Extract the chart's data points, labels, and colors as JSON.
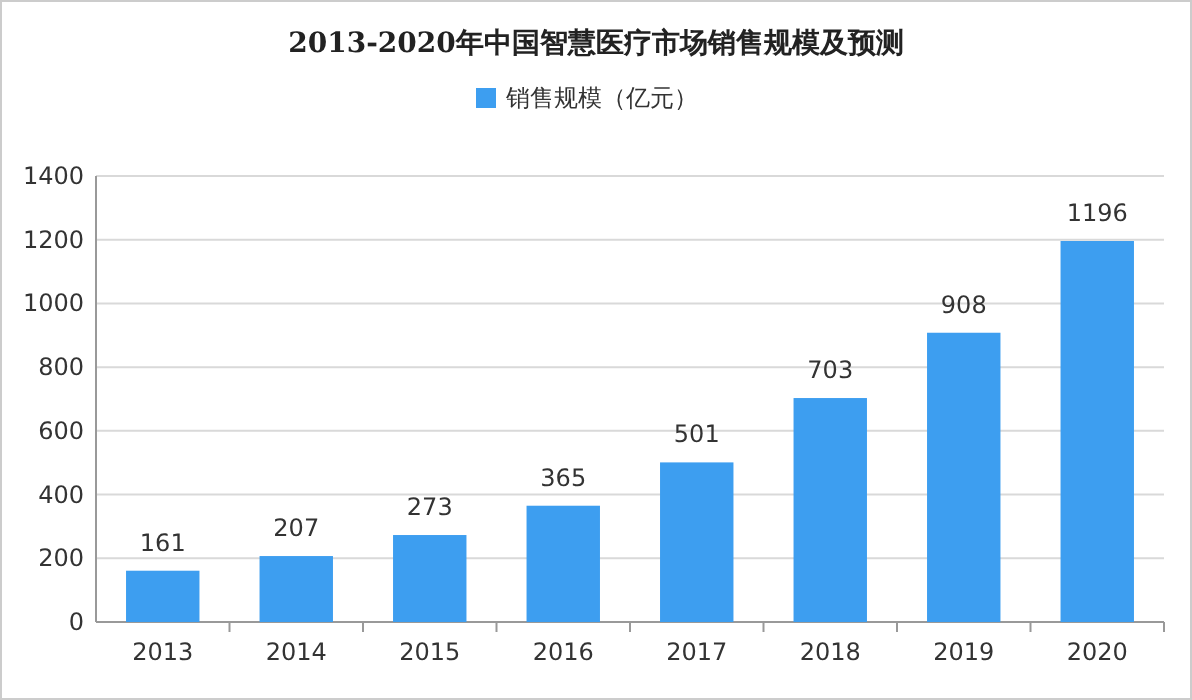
{
  "chart_data": {
    "type": "bar",
    "title": "2013-2020年中国智慧医疗市场销售规模及预测",
    "categories": [
      "2013",
      "2014",
      "2015",
      "2016",
      "2017",
      "2018",
      "2019",
      "2020"
    ],
    "series": [
      {
        "name": "销售规模（亿元）",
        "color": "#3d9ef0",
        "values": [
          161,
          207,
          273,
          365,
          501,
          703,
          908,
          1196
        ]
      }
    ],
    "ylim": [
      0,
      1400
    ],
    "yticks": [
      0,
      200,
      400,
      600,
      800,
      1000,
      1200,
      1400
    ],
    "grid": "y",
    "legend": "top",
    "data_labels": true
  }
}
